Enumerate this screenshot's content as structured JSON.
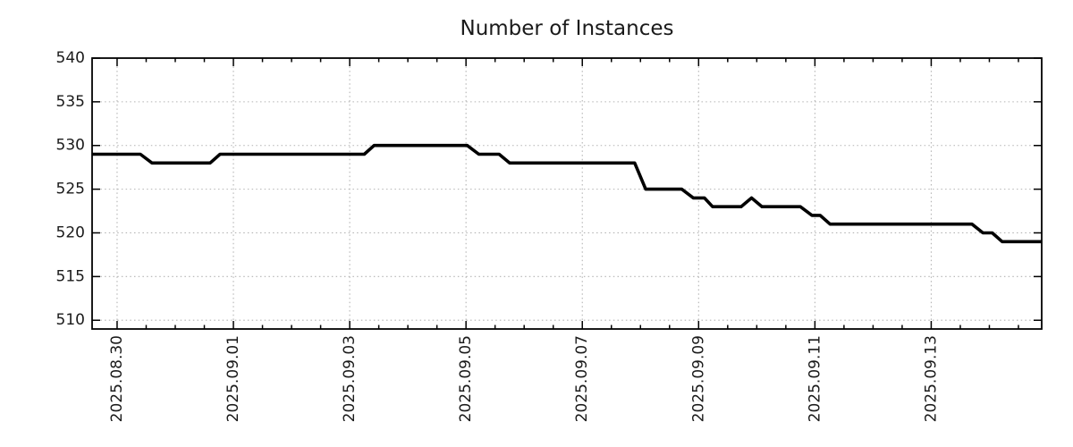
{
  "title": "Number of Instances",
  "chart_data": {
    "type": "line",
    "title": "Number of Instances",
    "x_axis": {
      "kind": "time",
      "unit": "days since 2025-08-30 00:00",
      "range": [
        -0.43,
        15.9
      ],
      "major_tick_interval": 2,
      "minor_tick_interval": 0.5,
      "major_ticks": [
        {
          "t": 0,
          "label": "2025.08.30"
        },
        {
          "t": 2,
          "label": "2025.09.01"
        },
        {
          "t": 4,
          "label": "2025.09.03"
        },
        {
          "t": 6,
          "label": "2025.09.05"
        },
        {
          "t": 8,
          "label": "2025.09.07"
        },
        {
          "t": 10,
          "label": "2025.09.09"
        },
        {
          "t": 12,
          "label": "2025.09.11"
        },
        {
          "t": 14,
          "label": "2025.09.13"
        }
      ]
    },
    "y_axis": {
      "range": [
        509,
        540
      ],
      "major_ticks": [
        510,
        515,
        520,
        525,
        530,
        535,
        540
      ]
    },
    "grid": {
      "show": true,
      "style": "dotted"
    },
    "legend": {
      "show": false
    },
    "series": [
      {
        "name": "instances",
        "points": [
          [
            -0.43,
            529
          ],
          [
            0.4,
            529
          ],
          [
            0.6,
            528
          ],
          [
            1.6,
            528
          ],
          [
            1.77,
            529
          ],
          [
            4.25,
            529
          ],
          [
            4.42,
            530
          ],
          [
            6.02,
            530
          ],
          [
            6.22,
            529
          ],
          [
            6.57,
            529
          ],
          [
            6.75,
            528
          ],
          [
            8.9,
            528
          ],
          [
            9.09,
            525
          ],
          [
            9.71,
            525
          ],
          [
            9.91,
            524
          ],
          [
            10.1,
            524
          ],
          [
            10.24,
            523
          ],
          [
            10.73,
            523
          ],
          [
            10.91,
            524
          ],
          [
            11.09,
            523
          ],
          [
            11.75,
            523
          ],
          [
            11.95,
            522
          ],
          [
            12.09,
            522
          ],
          [
            12.26,
            521
          ],
          [
            14.7,
            521
          ],
          [
            14.89,
            520
          ],
          [
            15.05,
            520
          ],
          [
            15.22,
            519
          ],
          [
            15.9,
            519
          ]
        ]
      }
    ]
  },
  "colors": {
    "line": "#000000",
    "axis": "#000000",
    "grid": "#b3b3b3",
    "text": "#1a1a1a",
    "background": "#ffffff"
  }
}
